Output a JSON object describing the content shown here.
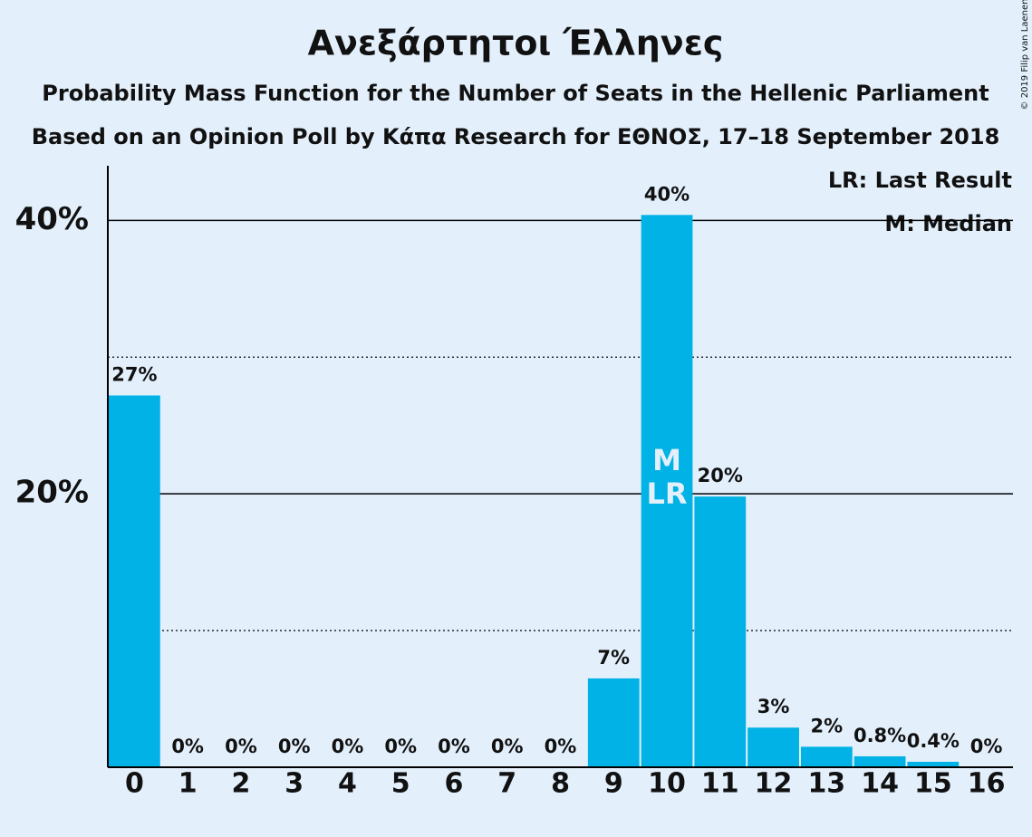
{
  "chart_data": {
    "type": "bar",
    "title": "Ανεξάρτητοι Έλληνες",
    "subtitle": "Probability Mass Function for the Number of Seats in the Hellenic Parliament",
    "subtitle2": "Based on an Opinion Poll by Κάπα Research for ΕΘΝΟΣ, 17–18 September 2018",
    "copyright": "© 2019 Filip van Laenen",
    "legend": [
      "LR: Last Result",
      "M: Median"
    ],
    "categories": [
      "0",
      "1",
      "2",
      "3",
      "4",
      "5",
      "6",
      "7",
      "8",
      "9",
      "10",
      "11",
      "12",
      "13",
      "14",
      "15",
      "16"
    ],
    "values": [
      27.2,
      0,
      0,
      0,
      0,
      0,
      0,
      0,
      0,
      6.5,
      40.4,
      19.8,
      2.9,
      1.5,
      0.8,
      0.4,
      0
    ],
    "value_labels": [
      "27%",
      "0%",
      "0%",
      "0%",
      "0%",
      "0%",
      "0%",
      "0%",
      "0%",
      "7%",
      "40%",
      "20%",
      "3%",
      "2%",
      "0.8%",
      "0.4%",
      "0%"
    ],
    "bar_annotations": [
      {
        "text": "M",
        "at": "10"
      },
      {
        "text": "LR",
        "at": "10"
      }
    ],
    "color": "#00b2e5",
    "ylim": [
      0,
      44
    ],
    "yticks": [
      {
        "value": 20,
        "label": "20%"
      },
      {
        "value": 40,
        "label": "40%"
      }
    ],
    "minor_yticks": [
      10,
      30
    ],
    "grid": true
  }
}
